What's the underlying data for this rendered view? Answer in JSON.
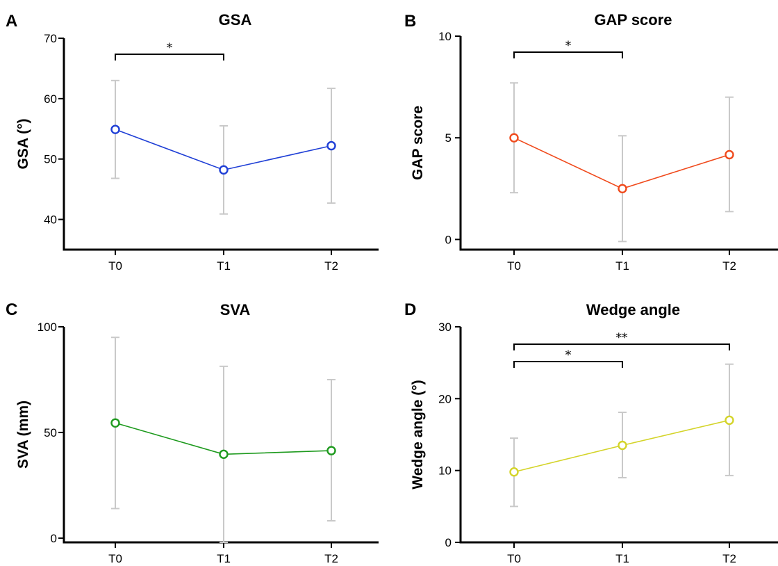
{
  "chart_data": [
    {
      "type": "line",
      "panel": "A",
      "title": "GSA",
      "ylabel": "GSA (°)",
      "categories": [
        "T0",
        "T1",
        "T2"
      ],
      "values": [
        54.9,
        48.2,
        52.2
      ],
      "error_low": [
        46.8,
        40.9,
        42.7
      ],
      "error_high": [
        63.0,
        55.5,
        61.7
      ],
      "ylim": [
        35,
        70
      ],
      "yticks": [
        40,
        50,
        60,
        70
      ],
      "color": "#1f3fd6",
      "significance": [
        {
          "from": "T0",
          "to": "T1",
          "label": "*"
        }
      ]
    },
    {
      "type": "line",
      "panel": "B",
      "title": "GAP score",
      "ylabel": "GAP score",
      "categories": [
        "T0",
        "T1",
        "T2"
      ],
      "values": [
        5.0,
        2.5,
        4.17
      ],
      "error_low": [
        2.3,
        -0.1,
        1.37
      ],
      "error_high": [
        7.7,
        5.1,
        7.0
      ],
      "ylim": [
        -0.5,
        10
      ],
      "yticks": [
        0,
        5,
        10
      ],
      "color": "#f04a1c",
      "significance": [
        {
          "from": "T0",
          "to": "T1",
          "label": "*"
        }
      ]
    },
    {
      "type": "line",
      "panel": "C",
      "title": "SVA",
      "ylabel": "SVA (mm)",
      "categories": [
        "T0",
        "T1",
        "T2"
      ],
      "values": [
        54.5,
        39.7,
        41.4
      ],
      "error_low": [
        14.0,
        -2.0,
        8.2
      ],
      "error_high": [
        95.0,
        81.3,
        75.0
      ],
      "ylim": [
        -2,
        100
      ],
      "yticks": [
        0,
        50,
        100
      ],
      "color": "#1e9a1e",
      "significance": []
    },
    {
      "type": "line",
      "panel": "D",
      "title": "Wedge angle",
      "ylabel": "Wedge angle (°)",
      "categories": [
        "T0",
        "T1",
        "T2"
      ],
      "values": [
        9.8,
        13.5,
        17.0
      ],
      "error_low": [
        5.0,
        9.0,
        9.3
      ],
      "error_high": [
        14.5,
        18.1,
        24.8
      ],
      "ylim": [
        0,
        30
      ],
      "yticks": [
        0,
        10,
        20,
        30
      ],
      "color": "#d4d42a",
      "significance": [
        {
          "from": "T0",
          "to": "T1",
          "label": "*"
        },
        {
          "from": "T0",
          "to": "T2",
          "label": "**"
        }
      ]
    }
  ]
}
